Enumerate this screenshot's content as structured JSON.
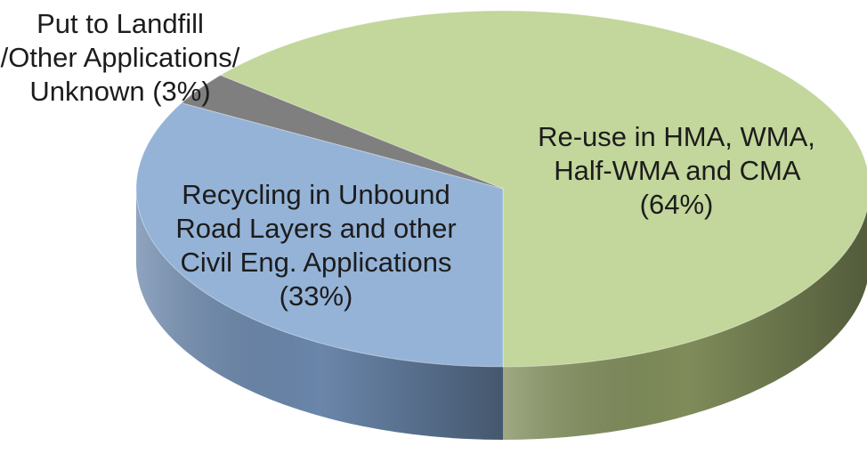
{
  "chart_data": {
    "type": "pie",
    "categories": [
      "Re-use in HMA, WMA, Half-WMA and CMA",
      "Recycling in Unbound Road Layers and other Civil Eng. Applications",
      "Put to Landfill /Other Applications/ Unknown"
    ],
    "values": [
      64,
      33,
      3
    ],
    "value_labels": [
      "(64%)",
      "(33%)",
      "(3%)"
    ],
    "colors": [
      "#c3d69b",
      "#95b3d7",
      "#7f7f7f"
    ],
    "side_colors": [
      "#7f8c5a",
      "#6a86aa",
      "#555555"
    ]
  }
}
